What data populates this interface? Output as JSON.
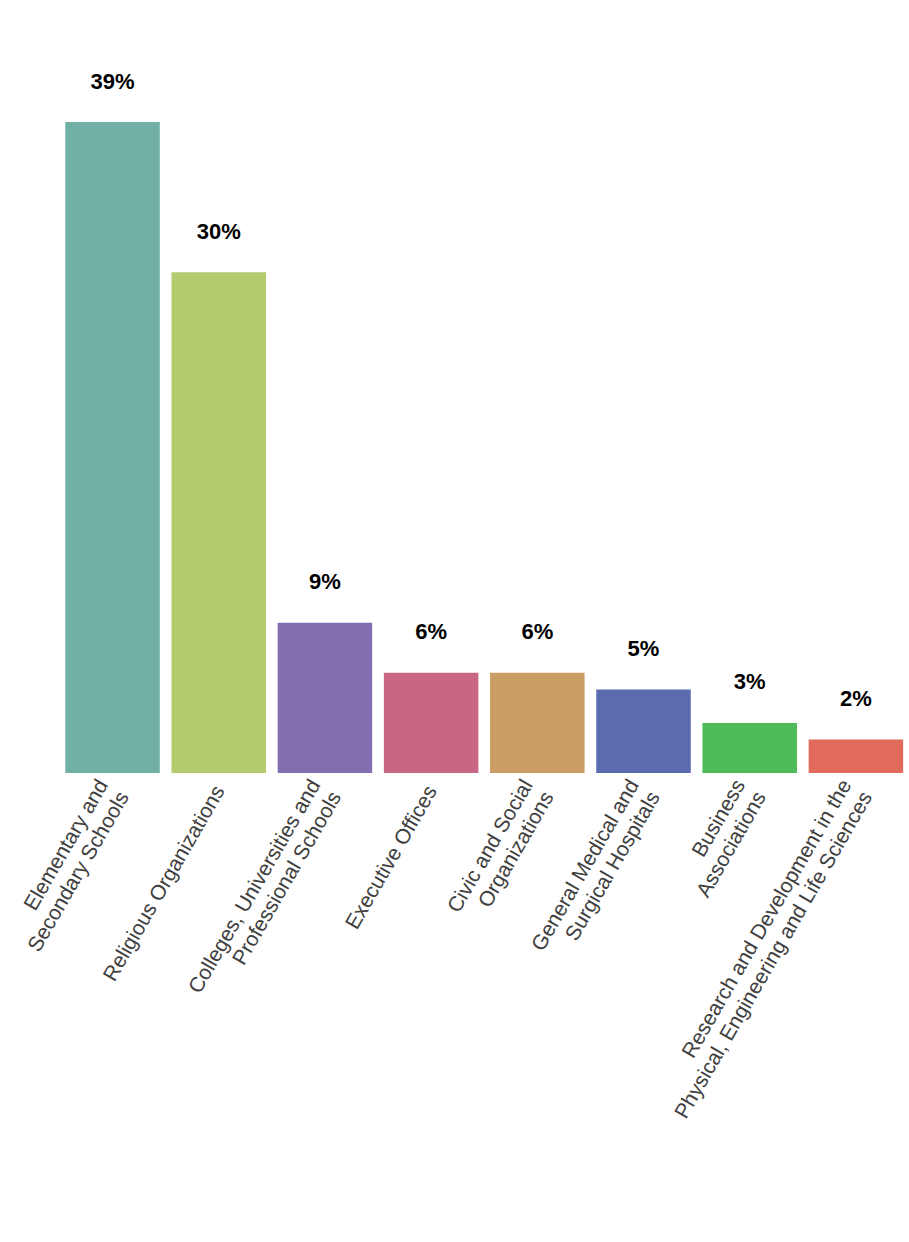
{
  "chart_data": {
    "type": "bar",
    "categories": [
      "Elementary and\nSecondary Schools",
      "Religious Organizations",
      "Colleges, Universities and\nProfessional Schools",
      "Executive Offices",
      "Civic and Social\nOrganizations",
      "General Medical and\nSurgical Hospitals",
      "Business\nAssociations",
      "Research and Development in the\nPhysical, Engineering and Life Sciences"
    ],
    "values": [
      39,
      30,
      9,
      6,
      6,
      5,
      3,
      2
    ],
    "value_labels": [
      "39%",
      "30%",
      "9%",
      "6%",
      "6%",
      "5%",
      "3%",
      "2%"
    ],
    "colors": [
      "#70b0a5",
      "#b5cb6f",
      "#826eb0",
      "#c96683",
      "#c99d63",
      "#5b6bb0",
      "#4cbb58",
      "#e06b5b"
    ],
    "ylim": [
      0,
      39
    ],
    "data_labels": true,
    "tick_labels": "x",
    "grid": false
  }
}
